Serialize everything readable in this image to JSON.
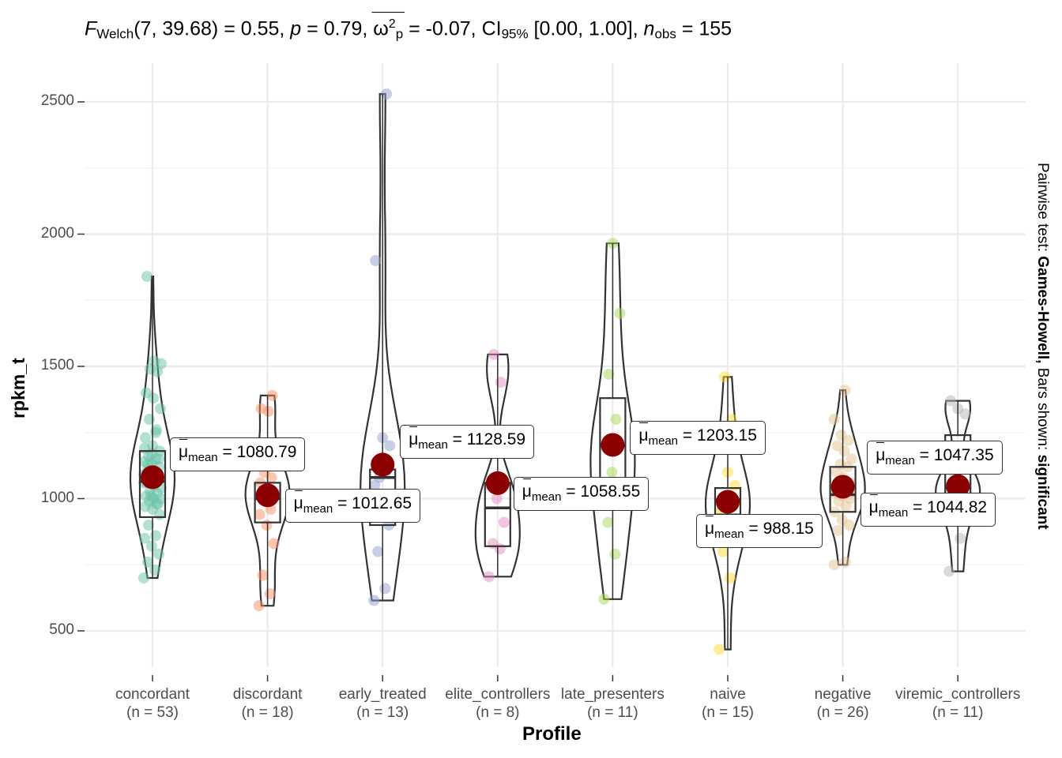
{
  "title": {
    "F_label": "F",
    "F_sub": "Welch",
    "df": "7, 39.68",
    "stat": "= 0.55,",
    "p_label": "p",
    "p_val": "= 0.79,",
    "omega": "ω",
    "omega_sup": "2",
    "omega_sub": "p",
    "omega_val": "= -0.07,",
    "ci_label": "CI",
    "ci_sub": "95%",
    "ci_val": "[0.00, 1.00],",
    "n_label": "n",
    "n_sub": "obs",
    "n_val": "= 155"
  },
  "subtitle_right": {
    "prefix": "Pairwise test: ",
    "test": "Games-Howell,",
    "mid": " Bars shown: ",
    "shown": "significant"
  },
  "colors": {
    "mean_point": "#8B0000",
    "outline": "#333333",
    "grid": "#ebebeb",
    "groups": [
      "#66C2A5",
      "#FC8D62",
      "#8DA0CB",
      "#E78AC3",
      "#A6D854",
      "#FFD92F",
      "#E5C494",
      "#B3B3B3"
    ]
  },
  "chart_data": {
    "type": "violin-box-scatter",
    "xlabel": "Profile",
    "ylabel": "rpkm_t",
    "ylim": [
      330,
      2610
    ],
    "yticks": [
      500,
      1000,
      1500,
      2000,
      2500
    ],
    "grid": true,
    "categories": [
      "concordant",
      "discordant",
      "early_treated",
      "elite_controllers",
      "late_presenters",
      "naive",
      "negative",
      "viremic_controllers"
    ],
    "counts": [
      "(n = 53)",
      "(n = 18)",
      "(n = 13)",
      "(n = 8)",
      "(n = 11)",
      "(n = 15)",
      "(n = 26)",
      "(n = 11)"
    ],
    "means": [
      1080.79,
      1012.65,
      1128.59,
      1058.55,
      1203.15,
      988.15,
      1044.82,
      1047.35
    ],
    "mean_labels": [
      "= 1080.79",
      "= 1012.65",
      "= 1128.59",
      "= 1058.55",
      "= 1203.15",
      "= 988.15",
      "= 1044.82",
      "= 1047.35"
    ],
    "mean_symbol": "μ",
    "mean_sub": "mean",
    "boxes": [
      {
        "q1": 930,
        "median": 1065,
        "q3": 1180,
        "min": 700,
        "max": 1840
      },
      {
        "q1": 910,
        "median": 1000,
        "q3": 1060,
        "min": 595,
        "max": 1390
      },
      {
        "q1": 900,
        "median": 1080,
        "q3": 1110,
        "min": 615,
        "max": 2530
      },
      {
        "q1": 820,
        "median": 965,
        "q3": 1060,
        "min": 705,
        "max": 1545
      },
      {
        "q1": 1060,
        "median": 1200,
        "q3": 1380,
        "min": 620,
        "max": 1965
      },
      {
        "q1": 940,
        "median": 995,
        "q3": 1040,
        "min": 430,
        "max": 1460
      },
      {
        "q1": 950,
        "median": 1015,
        "q3": 1120,
        "min": 750,
        "max": 1410
      },
      {
        "q1": 1000,
        "median": 1040,
        "q3": 1240,
        "min": 725,
        "max": 1370
      }
    ],
    "points": [
      [
        700,
        730,
        760,
        790,
        820,
        850,
        860,
        900,
        940,
        960,
        970,
        980,
        990,
        1000,
        1000,
        1010,
        1020,
        1030,
        1040,
        1050,
        1060,
        1070,
        1080,
        1090,
        1100,
        1110,
        1120,
        1130,
        1140,
        1150,
        1160,
        1180,
        1200,
        1230,
        1260,
        1300,
        1340,
        1380,
        1400,
        1480,
        1490,
        1510,
        1520,
        1840,
        980,
        1010,
        1060,
        1100,
        1130,
        1150,
        1170,
        1190,
        1250
      ],
      [
        595,
        640,
        710,
        830,
        900,
        940,
        960,
        1000,
        1020,
        1040,
        1060,
        1080,
        1100,
        1150,
        1330,
        1340,
        1390,
        1000
      ],
      [
        615,
        660,
        800,
        900,
        990,
        1050,
        1100,
        1130,
        1200,
        1230,
        1900,
        2530,
        1080
      ],
      [
        705,
        810,
        830,
        910,
        1000,
        1050,
        1440,
        1545
      ],
      [
        620,
        790,
        910,
        1000,
        1100,
        1200,
        1300,
        1470,
        1700,
        1965,
        1200
      ],
      [
        430,
        700,
        800,
        850,
        900,
        950,
        980,
        1000,
        1050,
        1100,
        1200,
        1300,
        1460,
        990,
        1010
      ],
      [
        750,
        760,
        880,
        900,
        920,
        950,
        970,
        990,
        1000,
        1010,
        1020,
        1040,
        1050,
        1060,
        1080,
        1100,
        1120,
        1130,
        1150,
        1180,
        1200,
        1220,
        1240,
        1300,
        1410,
        1030
      ],
      [
        725,
        850,
        950,
        1000,
        1020,
        1040,
        1060,
        1100,
        1320,
        1340,
        1370
      ]
    ]
  }
}
